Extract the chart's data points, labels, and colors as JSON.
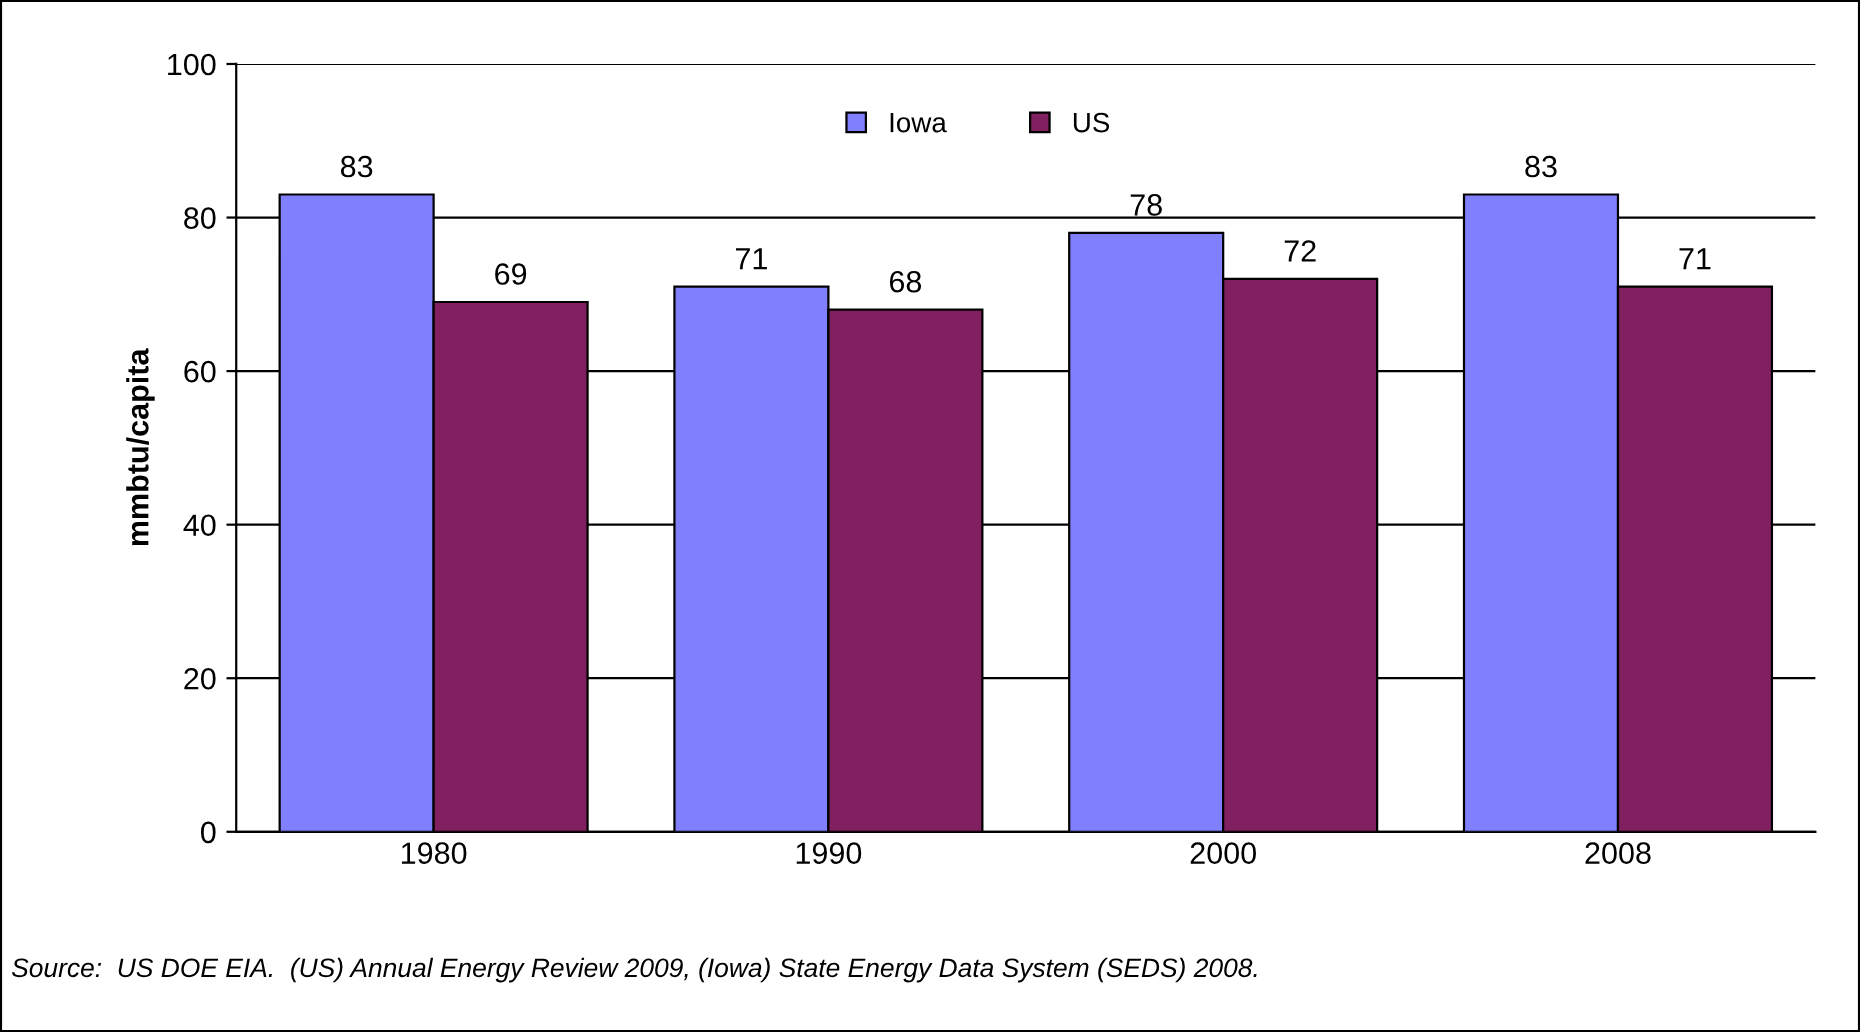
{
  "chart_data": {
    "type": "bar",
    "ylabel": "mmbtu/capita",
    "categories": [
      "1980",
      "1990",
      "2000",
      "2008"
    ],
    "series": [
      {
        "name": "Iowa",
        "color": "#8080ff",
        "values": [
          83,
          71,
          78,
          83
        ]
      },
      {
        "name": "US",
        "color": "#802060",
        "values": [
          69,
          68,
          72,
          71
        ]
      }
    ],
    "ylim": [
      0,
      100
    ],
    "yticks": [
      0,
      20,
      40,
      60,
      80,
      100
    ],
    "grid": "y",
    "legend": "top",
    "data_labels": true,
    "annotations": [
      "Source:  US DOE EIA.  (US) Annual Energy Review 2009, (Iowa) State Energy Data System (SEDS) 2008."
    ]
  }
}
